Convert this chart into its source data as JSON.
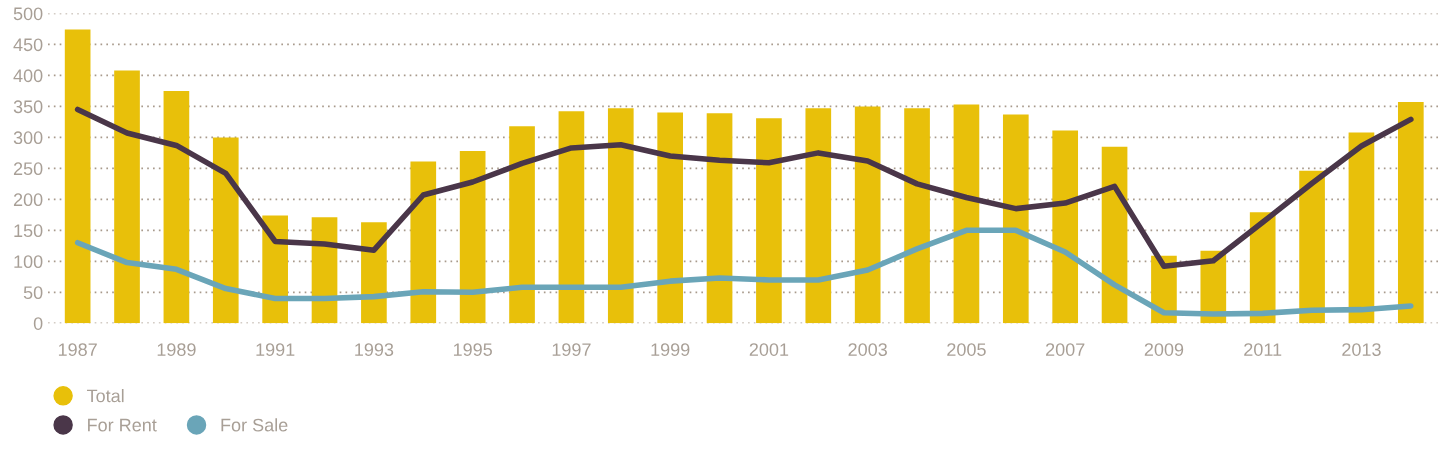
{
  "chart_data": {
    "type": "bar",
    "categories": [
      "1987",
      null,
      "1989",
      null,
      "1991",
      null,
      "1993",
      null,
      "1995",
      null,
      "1997",
      null,
      "1999",
      null,
      "2001",
      null,
      "2003",
      null,
      "2005",
      null,
      "2007",
      null,
      "2009",
      null,
      "2011",
      null,
      "2013",
      null
    ],
    "series": [
      {
        "name": "Total",
        "color": "#e8c00a",
        "values": [
          474,
          408,
          375,
          300,
          174,
          171,
          163,
          261,
          278,
          318,
          342,
          347,
          340,
          339,
          331,
          347,
          350,
          347,
          353,
          337,
          311,
          285,
          109,
          117,
          179,
          246,
          308,
          357
        ]
      },
      {
        "name": "For Rent",
        "type": "line",
        "color": "#4a3649",
        "values": [
          345,
          307,
          287,
          242,
          132,
          128,
          118,
          207,
          228,
          258,
          283,
          288,
          270,
          263,
          259,
          275,
          262,
          225,
          203,
          185,
          194,
          221,
          92,
          101,
          163,
          226,
          286,
          329
        ]
      },
      {
        "name": "For Sale",
        "type": "line",
        "color": "#6aa5b8",
        "values": [
          130,
          98,
          87,
          56,
          40,
          40,
          43,
          51,
          50,
          58,
          58,
          58,
          68,
          73,
          70,
          70,
          86,
          120,
          150,
          150,
          115,
          62,
          17,
          15,
          16,
          21,
          22,
          28
        ]
      }
    ],
    "ylim": [
      0,
      500
    ],
    "yticks": [
      0,
      50,
      100,
      150,
      200,
      250,
      300,
      350,
      400,
      450,
      500
    ],
    "grid": "y",
    "legend": "bottom left",
    "marker": "none",
    "line_style": "solid"
  }
}
